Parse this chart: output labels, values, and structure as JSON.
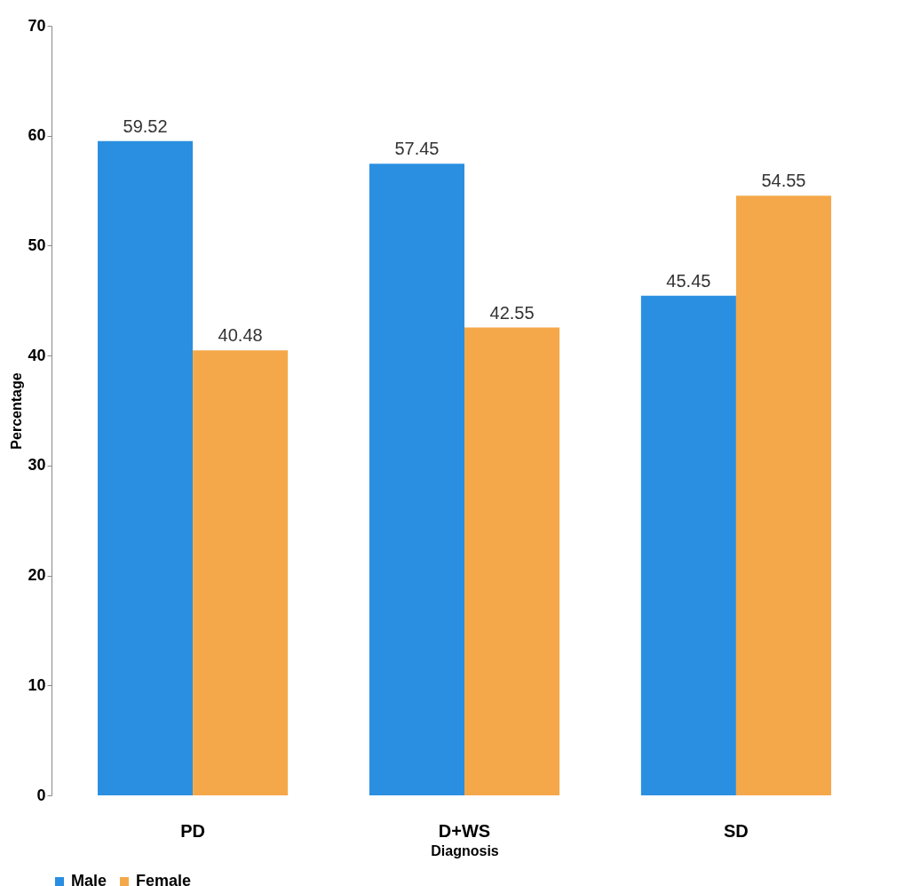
{
  "chart_data": {
    "type": "bar",
    "xlabel": "Diagnosis",
    "ylabel": "Percentage",
    "categories": [
      "PD",
      "D+WS",
      "SD"
    ],
    "series": [
      {
        "name": "Male",
        "color": "#2a8fe0",
        "values": [
          59.52,
          57.45,
          45.45
        ]
      },
      {
        "name": "Female",
        "color": "#f5a84a",
        "values": [
          40.48,
          42.55,
          54.55
        ]
      }
    ],
    "ylim": [
      0,
      70
    ],
    "yticks": [
      0,
      10,
      20,
      30,
      40,
      50,
      60,
      70
    ],
    "grid": false,
    "legend": "bottom",
    "data_labels": true
  }
}
